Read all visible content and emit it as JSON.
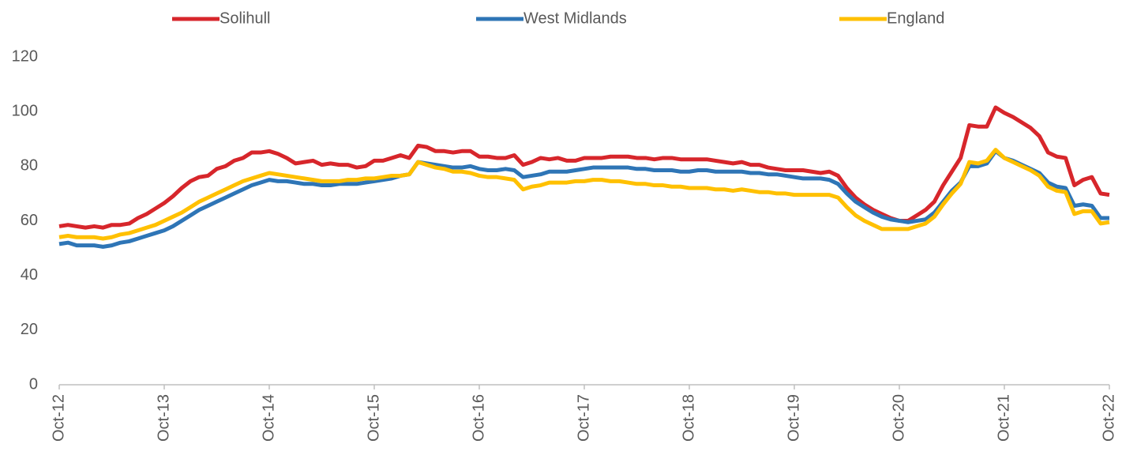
{
  "chart_data": {
    "type": "line",
    "categories": [
      "Oct-12",
      null,
      null,
      null,
      null,
      null,
      null,
      null,
      null,
      null,
      null,
      null,
      "Oct-13",
      null,
      null,
      null,
      null,
      null,
      null,
      null,
      null,
      null,
      null,
      null,
      "Oct-14",
      null,
      null,
      null,
      null,
      null,
      null,
      null,
      null,
      null,
      null,
      null,
      "Oct-15",
      null,
      null,
      null,
      null,
      null,
      null,
      null,
      null,
      null,
      null,
      null,
      "Oct-16",
      null,
      null,
      null,
      null,
      null,
      null,
      null,
      null,
      null,
      null,
      null,
      "Oct-17",
      null,
      null,
      null,
      null,
      null,
      null,
      null,
      null,
      null,
      null,
      null,
      "Oct-18",
      null,
      null,
      null,
      null,
      null,
      null,
      null,
      null,
      null,
      null,
      null,
      "Oct-19",
      null,
      null,
      null,
      null,
      null,
      null,
      null,
      null,
      null,
      null,
      null,
      "Oct-20",
      null,
      null,
      null,
      null,
      null,
      null,
      null,
      null,
      null,
      null,
      null,
      "Oct-21",
      null,
      null,
      null,
      null,
      null,
      null,
      null,
      null,
      null,
      null,
      null,
      "Oct-22"
    ],
    "series": [
      {
        "name": "Solihull",
        "color": "#d7262b",
        "values": [
          58,
          58.5,
          58,
          57.5,
          58,
          57.5,
          58.5,
          58.5,
          59,
          61,
          62.5,
          64.5,
          66.5,
          69,
          72,
          74.5,
          76,
          76.5,
          79,
          80,
          82,
          83,
          85,
          85,
          85.5,
          84.5,
          83,
          81,
          81.5,
          82,
          80.5,
          81,
          80.5,
          80.5,
          79.5,
          80,
          82,
          82,
          83,
          84,
          83,
          87.5,
          87,
          85.5,
          85.5,
          85,
          85.5,
          85.5,
          83.5,
          83.5,
          83,
          83,
          84,
          80.5,
          81.5,
          83,
          82.5,
          83,
          82,
          82,
          83,
          83,
          83,
          83.5,
          83.5,
          83.5,
          83,
          83,
          82.5,
          83,
          83,
          82.5,
          82.5,
          82.5,
          82.5,
          82,
          81.5,
          81,
          81.5,
          80.5,
          80.5,
          79.5,
          79,
          78.5,
          78.5,
          78.5,
          78,
          77.5,
          78,
          76.5,
          72,
          68.5,
          66,
          64,
          62.5,
          61,
          60,
          60,
          62,
          64,
          67,
          73,
          78,
          83,
          95,
          94.5,
          94.5,
          101.5,
          99.5,
          98,
          96,
          94,
          91,
          85,
          83.5,
          83,
          73,
          75,
          76,
          70,
          69.5
        ]
      },
      {
        "name": "West Midlands",
        "color": "#2e75b6",
        "values": [
          51.5,
          52,
          51,
          51,
          51,
          50.5,
          51,
          52,
          52.5,
          53.5,
          54.5,
          55.5,
          56.5,
          58,
          60,
          62,
          64,
          65.5,
          67,
          68.5,
          70,
          71.5,
          73,
          74,
          75,
          74.5,
          74.5,
          74,
          73.5,
          73.5,
          73,
          73,
          73.5,
          73.5,
          73.5,
          74,
          74.5,
          75,
          75.5,
          76.5,
          77,
          81.5,
          81,
          80.5,
          80,
          79.5,
          79.5,
          80,
          79,
          78.5,
          78.5,
          79,
          78.5,
          76,
          76.5,
          77,
          78,
          78,
          78,
          78.5,
          79,
          79.5,
          79.5,
          79.5,
          79.5,
          79.5,
          79,
          79,
          78.5,
          78.5,
          78.5,
          78,
          78,
          78.5,
          78.5,
          78,
          78,
          78,
          78,
          77.5,
          77.5,
          77,
          77,
          76.5,
          76,
          75.5,
          75.5,
          75.5,
          75,
          73.5,
          70,
          67,
          65,
          63,
          61.5,
          60.5,
          60,
          59.5,
          60,
          60.5,
          63,
          67,
          71,
          74,
          80,
          80,
          81,
          85.5,
          83,
          82,
          80.5,
          79,
          77.5,
          74,
          72.5,
          72,
          65.5,
          66,
          65.5,
          61,
          61
        ]
      },
      {
        "name": "England",
        "color": "#ffc000",
        "values": [
          54,
          54.5,
          54,
          54,
          54,
          53.5,
          54,
          55,
          55.5,
          56.5,
          57.5,
          58.5,
          60,
          61.5,
          63,
          65,
          67,
          68.5,
          70,
          71.5,
          73,
          74.5,
          75.5,
          76.5,
          77.5,
          77,
          76.5,
          76,
          75.5,
          75,
          74.5,
          74.5,
          74.5,
          75,
          75,
          75.5,
          75.5,
          76,
          76.5,
          76.5,
          77,
          81.5,
          80.5,
          79.5,
          79,
          78,
          78,
          77.5,
          76.5,
          76,
          76,
          75.5,
          75,
          71.5,
          72.5,
          73,
          74,
          74,
          74,
          74.5,
          74.5,
          75,
          75,
          74.5,
          74.5,
          74,
          73.5,
          73.5,
          73,
          73,
          72.5,
          72.5,
          72,
          72,
          72,
          71.5,
          71.5,
          71,
          71.5,
          71,
          70.5,
          70.5,
          70,
          70,
          69.5,
          69.5,
          69.5,
          69.5,
          69.5,
          68.5,
          65,
          62,
          60,
          58.5,
          57,
          57,
          57,
          57,
          58,
          59,
          61.5,
          66,
          70,
          73.5,
          81.5,
          81,
          82,
          86,
          83,
          81.5,
          80,
          78.5,
          76.5,
          72.5,
          71,
          70.5,
          62.5,
          63.5,
          63.5,
          59,
          59.5
        ]
      }
    ],
    "ylim": [
      0,
      120
    ],
    "yticks": [
      0,
      20,
      40,
      60,
      80,
      100,
      120
    ],
    "grid": false,
    "legend": "top"
  }
}
